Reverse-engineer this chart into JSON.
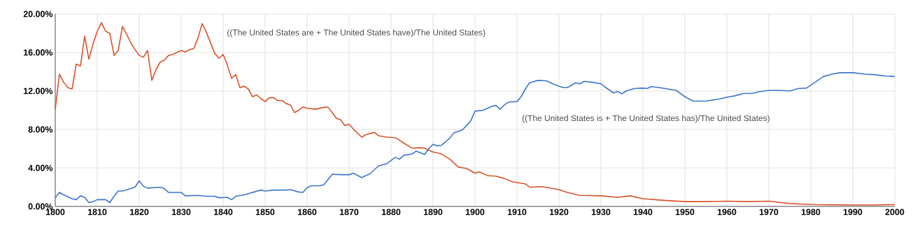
{
  "chart_data": {
    "type": "line",
    "xlim": [
      1800,
      2000
    ],
    "ylim": [
      0,
      20
    ],
    "xticks": [
      1800,
      1810,
      1820,
      1830,
      1840,
      1850,
      1860,
      1870,
      1880,
      1890,
      1900,
      1910,
      1920,
      1930,
      1940,
      1950,
      1960,
      1970,
      1980,
      1990,
      2000
    ],
    "yticks": [
      {
        "value": 0,
        "label": "0.00%"
      },
      {
        "value": 4,
        "label": "4.00%"
      },
      {
        "value": 8,
        "label": "8.00%"
      },
      {
        "value": 12,
        "label": "12.00%"
      },
      {
        "value": 16,
        "label": "16.00%"
      },
      {
        "value": 20,
        "label": "20.00%"
      }
    ],
    "grid": true,
    "legend": false,
    "marker": "none",
    "line_style": "solid",
    "series": [
      {
        "name": "((The United States are + The United States have)/The United States)",
        "color": "#d9542b",
        "x": [
          1800,
          1801,
          1802,
          1803,
          1804,
          1805,
          1806,
          1807,
          1808,
          1809,
          1810,
          1811,
          1812,
          1813,
          1814,
          1815,
          1816,
          1817,
          1818,
          1819,
          1820,
          1821,
          1822,
          1823,
          1824,
          1825,
          1826,
          1827,
          1828,
          1829,
          1830,
          1831,
          1832,
          1833,
          1834,
          1835,
          1836,
          1837,
          1838,
          1839,
          1840,
          1841,
          1842,
          1843,
          1844,
          1845,
          1846,
          1847,
          1848,
          1849,
          1850,
          1851,
          1852,
          1853,
          1854,
          1855,
          1856,
          1857,
          1858,
          1859,
          1860,
          1862,
          1864,
          1865,
          1866,
          1867,
          1868,
          1869,
          1870,
          1871,
          1873,
          1874,
          1876,
          1877,
          1879,
          1881,
          1883,
          1885,
          1887,
          1888,
          1890,
          1892,
          1894,
          1896,
          1898,
          1900,
          1901,
          1903,
          1905,
          1907,
          1909,
          1912,
          1913,
          1916,
          1920,
          1922,
          1925,
          1930,
          1934,
          1937,
          1940,
          1945,
          1950,
          1955,
          1960,
          1965,
          1970,
          1975,
          1980,
          1985,
          1990,
          1995,
          2000
        ],
        "values": [
          10.1,
          13.75,
          12.9,
          12.35,
          12.2,
          14.8,
          14.6,
          17.7,
          15.3,
          16.9,
          18.2,
          19.1,
          18.2,
          18.0,
          15.7,
          16.2,
          18.7,
          17.9,
          17.0,
          16.3,
          15.7,
          15.5,
          16.2,
          13.1,
          14.2,
          15.0,
          15.2,
          15.7,
          15.8,
          16.0,
          16.2,
          16.05,
          16.3,
          16.4,
          17.5,
          19.0,
          18.1,
          17.0,
          15.9,
          15.4,
          15.8,
          14.7,
          13.3,
          13.7,
          12.35,
          12.5,
          12.2,
          11.4,
          11.6,
          11.2,
          10.9,
          11.3,
          11.3,
          11.0,
          11.0,
          10.7,
          10.55,
          9.75,
          10.0,
          10.35,
          10.2,
          10.1,
          10.3,
          10.3,
          9.75,
          9.15,
          9.0,
          8.4,
          8.55,
          8.05,
          7.2,
          7.45,
          7.7,
          7.35,
          7.2,
          7.15,
          6.6,
          6.05,
          6.1,
          6.05,
          5.65,
          5.45,
          4.9,
          4.1,
          3.95,
          3.45,
          3.6,
          3.2,
          3.15,
          2.9,
          2.55,
          2.35,
          2.0,
          2.05,
          1.75,
          1.45,
          1.15,
          1.1,
          0.95,
          1.1,
          0.8,
          0.63,
          0.5,
          0.5,
          0.55,
          0.5,
          0.55,
          0.3,
          0.2,
          0.17,
          0.15,
          0.15,
          0.2
        ]
      },
      {
        "name": "((The United States is + The United States has)/The United States)",
        "color": "#3d77cc",
        "x": [
          1800,
          1801,
          1802,
          1804,
          1805,
          1806,
          1807,
          1808,
          1809,
          1810,
          1812,
          1813,
          1814,
          1815,
          1816,
          1818,
          1819,
          1820,
          1821,
          1822,
          1825,
          1826,
          1827,
          1830,
          1831,
          1834,
          1836,
          1838,
          1839,
          1841,
          1842,
          1843,
          1845,
          1847,
          1849,
          1850,
          1852,
          1855,
          1856,
          1858,
          1859,
          1860,
          1861,
          1863,
          1864,
          1866,
          1868,
          1870,
          1871,
          1873,
          1875,
          1877,
          1879,
          1881,
          1882,
          1883,
          1885,
          1886,
          1888,
          1889,
          1890,
          1891,
          1892,
          1894,
          1895,
          1897,
          1899,
          1900,
          1902,
          1904,
          1905,
          1906,
          1907,
          1908,
          1910,
          1911,
          1912,
          1913,
          1915,
          1917,
          1919,
          1921,
          1922,
          1924,
          1925,
          1926,
          1928,
          1930,
          1931,
          1933,
          1934,
          1935,
          1936,
          1938,
          1940,
          1941,
          1942,
          1944,
          1946,
          1948,
          1950,
          1952,
          1955,
          1958,
          1960,
          1962,
          1964,
          1966,
          1968,
          1970,
          1973,
          1975,
          1977,
          1979,
          1981,
          1983,
          1985,
          1987,
          1990,
          1993,
          1995,
          1998,
          2000
        ],
        "values": [
          0.9,
          1.45,
          1.2,
          0.8,
          0.7,
          1.1,
          0.95,
          0.4,
          0.5,
          0.7,
          0.7,
          0.4,
          1.05,
          1.6,
          1.6,
          1.85,
          2.0,
          2.65,
          2.1,
          1.9,
          2.0,
          1.85,
          1.45,
          1.45,
          1.1,
          1.15,
          1.05,
          1.05,
          0.9,
          0.95,
          0.7,
          1.05,
          1.2,
          1.45,
          1.7,
          1.6,
          1.7,
          1.7,
          1.75,
          1.5,
          1.45,
          1.95,
          2.15,
          2.15,
          2.25,
          3.35,
          3.3,
          3.3,
          3.45,
          3.0,
          3.4,
          4.2,
          4.45,
          5.1,
          4.9,
          5.3,
          5.45,
          5.75,
          5.4,
          6.0,
          6.45,
          6.3,
          6.35,
          7.1,
          7.65,
          7.95,
          8.9,
          9.9,
          10.0,
          10.4,
          10.5,
          10.1,
          10.55,
          10.85,
          10.9,
          11.4,
          12.2,
          12.85,
          13.1,
          13.05,
          12.65,
          12.35,
          12.35,
          12.85,
          12.75,
          13.0,
          12.9,
          12.75,
          12.4,
          11.8,
          11.95,
          11.7,
          12.0,
          12.25,
          12.3,
          12.25,
          12.45,
          12.35,
          12.2,
          12.05,
          11.4,
          10.95,
          10.95,
          11.15,
          11.35,
          11.5,
          11.75,
          11.75,
          11.95,
          12.05,
          12.05,
          12.0,
          12.25,
          12.3,
          12.9,
          13.5,
          13.75,
          13.9,
          13.9,
          13.75,
          13.7,
          13.55,
          13.5
        ]
      }
    ]
  }
}
